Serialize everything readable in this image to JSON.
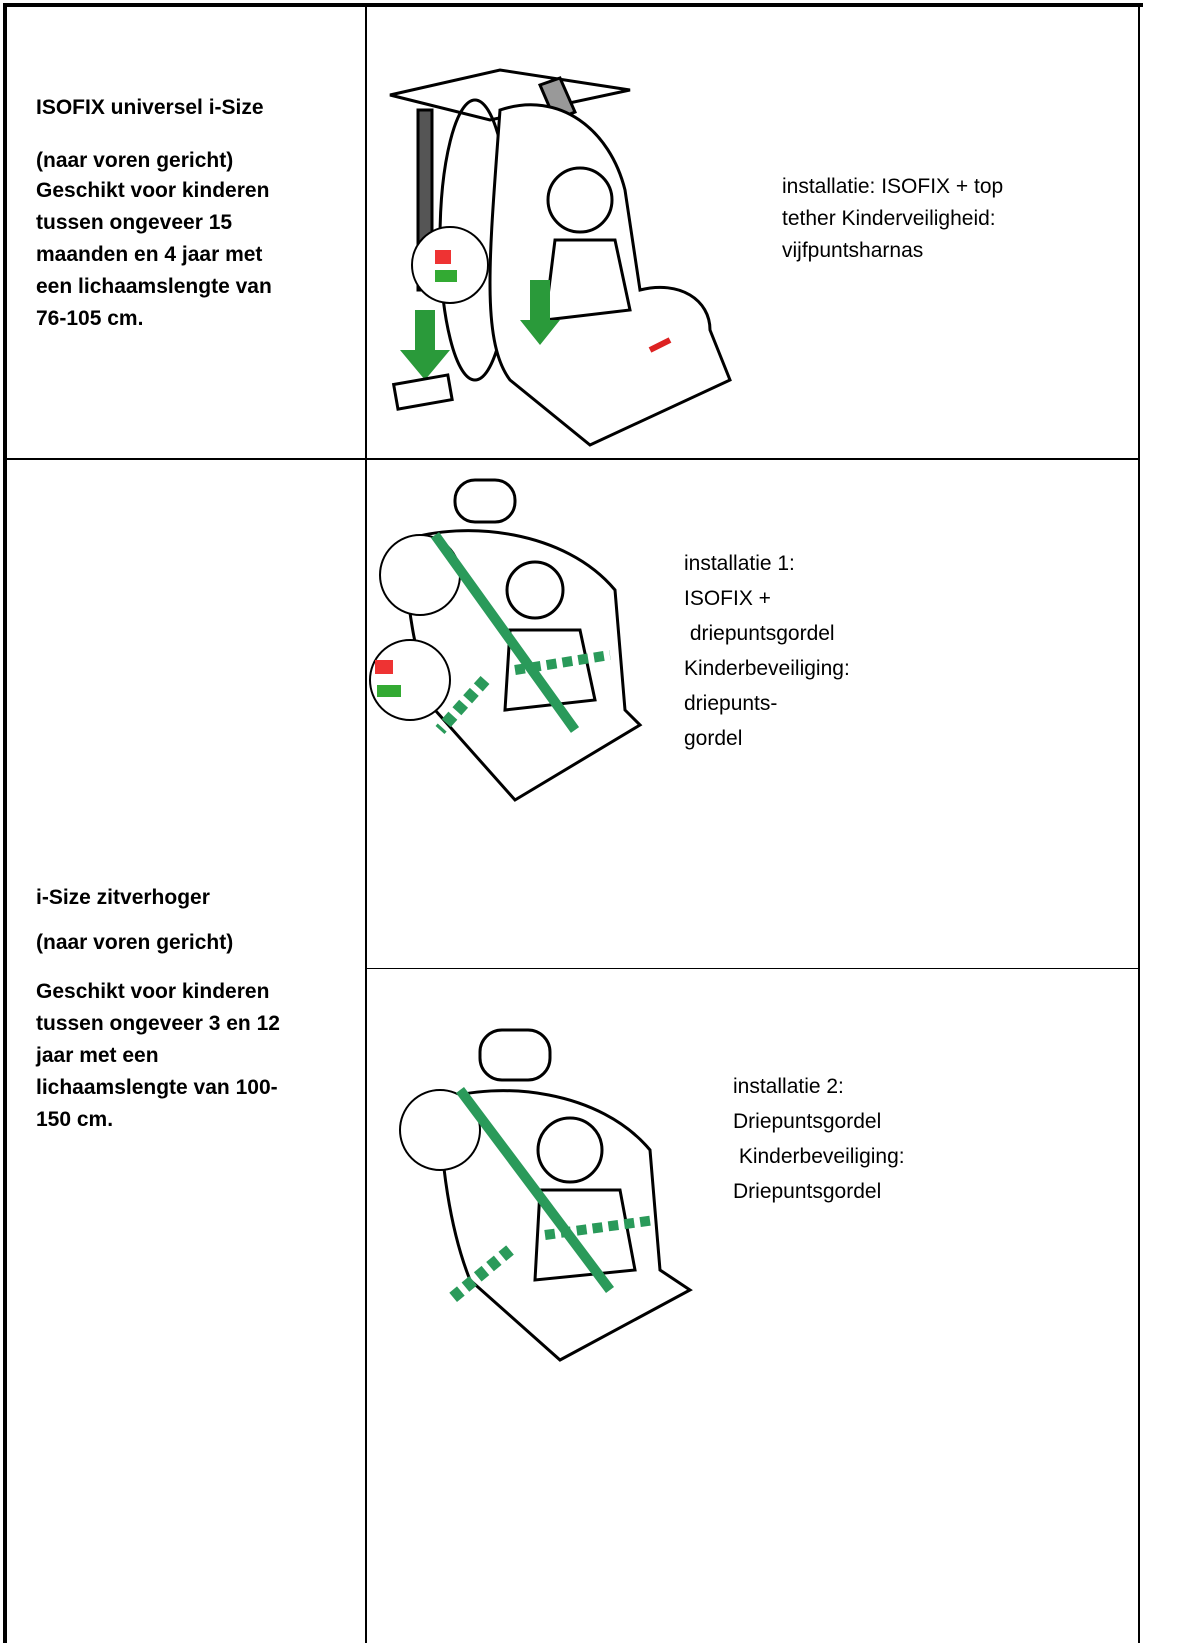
{
  "rows": [
    {
      "title": "ISOFIX universel i-Size",
      "subtitle": "(naar voren gericht)",
      "description": [
        "Geschikt voor kinderen",
        "tussen ongeveer 15",
        "maanden en 4 jaar met",
        "een lichaamslengte van",
        "76-105 cm."
      ],
      "installations": [
        {
          "lines": [
            "installatie: ISOFIX + top",
            "tether Kinderveiligheid:",
            "vijfpuntsharnas"
          ]
        }
      ]
    },
    {
      "title": "i-Size zitverhoger",
      "subtitle": "(naar voren gericht)",
      "description": [
        "Geschikt voor kinderen",
        "tussen ongeveer 3 en 12",
        "jaar met een",
        "lichaamslengte van 100-",
        "150 cm."
      ],
      "installations": [
        {
          "lines": [
            "installatie 1:",
            "ISOFIX +",
            " driepuntsgordel",
            "Kinderbeveiliging:",
            "driepunts-",
            "gordel"
          ]
        },
        {
          "lines": [
            "installatie 2:",
            "Driepuntsgordel",
            " Kinderbeveiliging:",
            "Driepuntsgordel"
          ]
        }
      ]
    }
  ]
}
